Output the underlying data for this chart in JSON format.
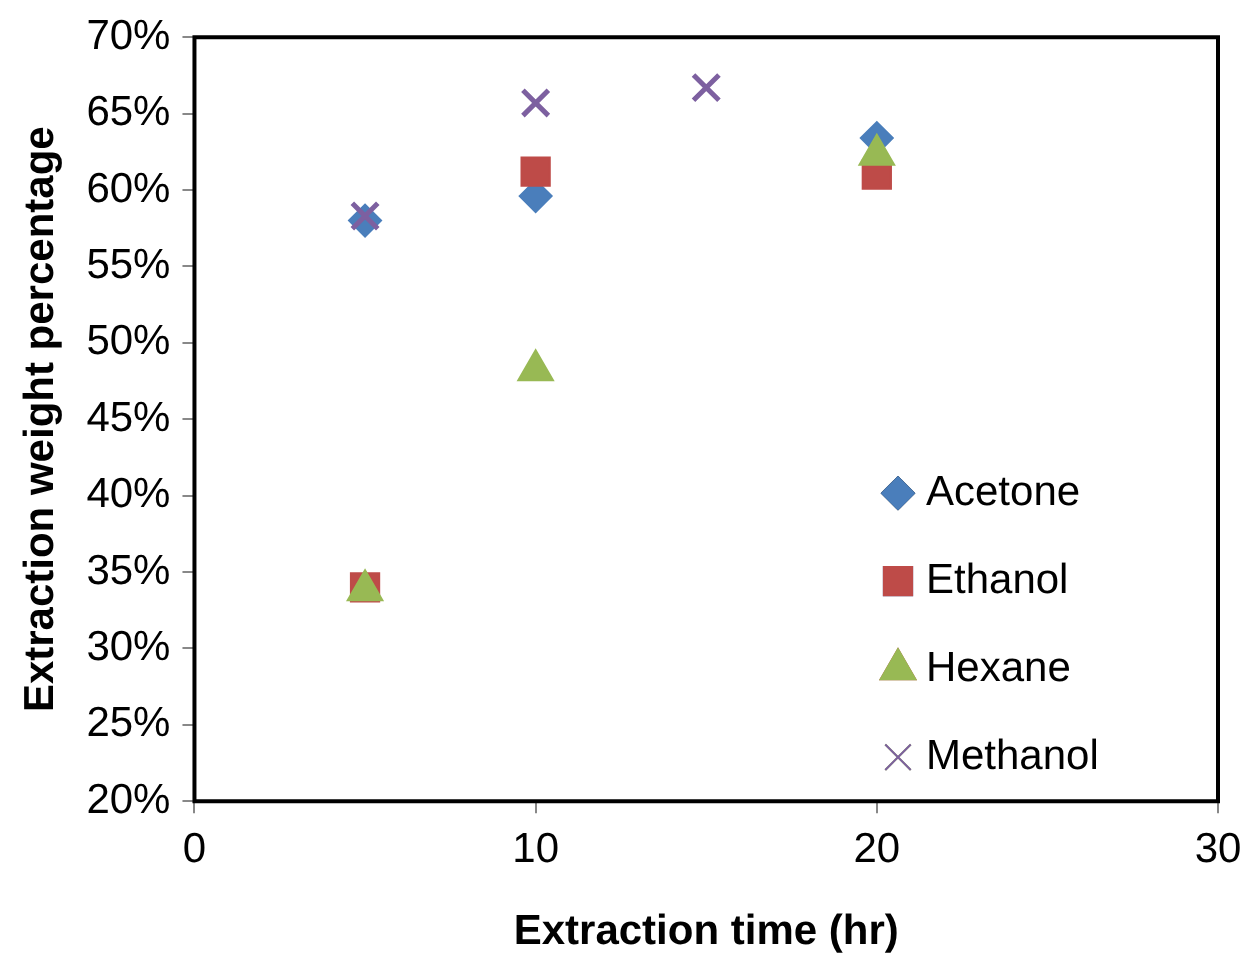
{
  "chart_data": {
    "type": "scatter",
    "xlabel": "Extraction time (hr)",
    "ylabel": "Extraction weight percentage",
    "xlim": [
      0,
      30
    ],
    "xticks": [
      0,
      10,
      20,
      30
    ],
    "ylim": [
      20,
      70
    ],
    "yticks": [
      {
        "value": 20,
        "label": "20%"
      },
      {
        "value": 25,
        "label": "25%"
      },
      {
        "value": 30,
        "label": "30%"
      },
      {
        "value": 35,
        "label": "35%"
      },
      {
        "value": 40,
        "label": "40%"
      },
      {
        "value": 45,
        "label": "45%"
      },
      {
        "value": 50,
        "label": "50%"
      },
      {
        "value": 55,
        "label": "55%"
      },
      {
        "value": 60,
        "label": "60%"
      },
      {
        "value": 65,
        "label": "65%"
      },
      {
        "value": 70,
        "label": "70%"
      }
    ],
    "grid": false,
    "legend": "bottom right",
    "series": [
      {
        "name": "Acetone",
        "color": "#4a7ebb",
        "marker": "diamond",
        "x": [
          5,
          10,
          20
        ],
        "values": [
          58.0,
          59.6,
          63.4
        ]
      },
      {
        "name": "Ethanol",
        "color": "#be4b48",
        "marker": "square",
        "x": [
          5,
          10,
          20
        ],
        "values": [
          34.0,
          61.2,
          61.0
        ]
      },
      {
        "name": "Hexane",
        "color": "#98b954",
        "marker": "triangle",
        "x": [
          5,
          10,
          20
        ],
        "values": [
          33.8,
          48.2,
          62.3
        ]
      },
      {
        "name": "Methanol",
        "color": "#7d60a0",
        "marker": "cross",
        "x": [
          5,
          10,
          15
        ],
        "values": [
          58.3,
          65.7,
          66.7
        ]
      }
    ]
  }
}
